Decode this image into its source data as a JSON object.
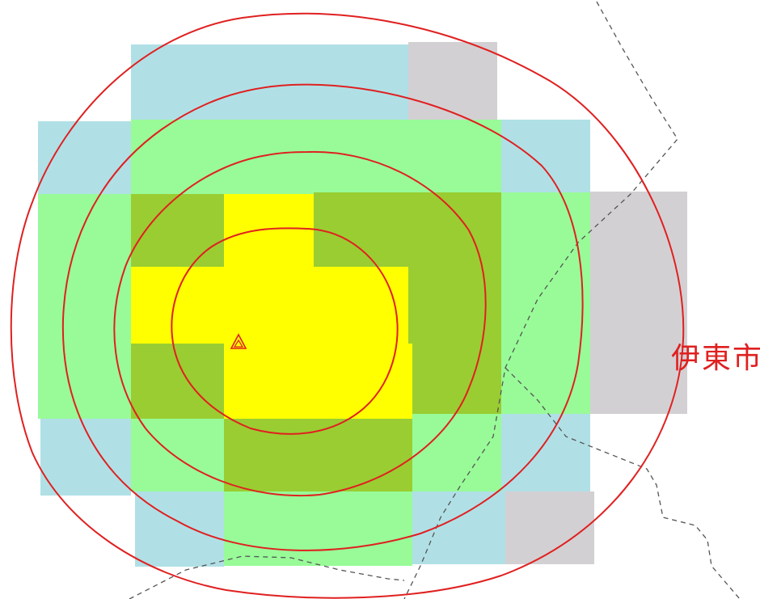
{
  "colors": {
    "background": "#ffffff",
    "level_1": "#ffff00",
    "level_2": "#9acd32",
    "level_3": "#98fb98",
    "level_4": "#b0e0e6",
    "level_5": "#d3d0d3",
    "isoline": "#e02020",
    "boundary": "#555555",
    "label": "#e02020"
  },
  "map": {
    "epicenter_icon": "warning-triangle-icon",
    "city_label": "伊東市"
  }
}
